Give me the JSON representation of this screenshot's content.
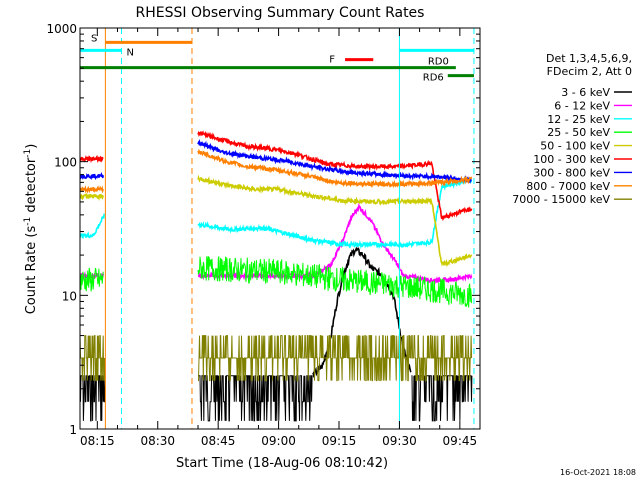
{
  "chart_data": {
    "type": "line",
    "title": "RHESSI Observing Summary Count Rates",
    "xlabel": "Start Time (18-Aug-06 08:10:42)",
    "ylabel": "Count Rate (s⁻¹ detector⁻¹)",
    "ylabel_parts": [
      "Count Rate (s",
      "-1",
      " detector",
      "-1",
      ")"
    ],
    "yscale": "log",
    "ylim": [
      1,
      1000
    ],
    "xlim_minutes": [
      490.7,
      590.0
    ],
    "x_ticks": [
      {
        "label": "08:15",
        "minutes": 495
      },
      {
        "label": "08:30",
        "minutes": 510
      },
      {
        "label": "08:45",
        "minutes": 525
      },
      {
        "label": "09:00",
        "minutes": 540
      },
      {
        "label": "09:15",
        "minutes": 555
      },
      {
        "label": "09:30",
        "minutes": 570
      },
      {
        "label": "09:45",
        "minutes": 585
      }
    ],
    "y_ticks": [
      {
        "label": "1",
        "value": 1
      },
      {
        "label": "10",
        "value": 10
      },
      {
        "label": "100",
        "value": 100
      },
      {
        "label": "1000",
        "value": 1000
      }
    ],
    "legend_header": [
      "Det 1,3,4,5,6,9,",
      "FDecim 2, Att 0"
    ],
    "legend_position": "right",
    "series": [
      {
        "name": "3 - 6 keV",
        "color": "#000000",
        "style": "noise",
        "segments": [
          {
            "x": [
              490.7,
              497
            ],
            "y": [
              2.5,
              2.5
            ]
          },
          {
            "x": [
              520,
              548.5
            ],
            "y": [
              2.5,
              2.5
            ]
          },
          {
            "x": [
              573,
              588
            ],
            "y": [
              2.5,
              2.5
            ]
          }
        ],
        "peak": {
          "x": [
            548.5,
            551,
            553,
            554.5,
            556,
            557.5,
            559,
            561,
            563,
            566,
            568.5,
            571,
            573
          ],
          "y": [
            2.5,
            3,
            5,
            9,
            14,
            19,
            22,
            20,
            16,
            14,
            10,
            4,
            2.5
          ]
        }
      },
      {
        "name": "6 - 12 keV",
        "color": "#ff00ff",
        "segments": [
          {
            "x": [
              490.7,
              496.5
            ],
            "y": [
              14,
              14
            ]
          },
          {
            "x": [
              520,
              540,
              549,
              553,
              556,
              558,
              560,
              563,
              566,
              569,
              571,
              578,
              582,
              588
            ],
            "y": [
              14,
              14,
              14,
              17,
              26,
              38,
              46,
              36,
              24,
              18,
              14,
              13,
              13,
              14
            ]
          }
        ]
      },
      {
        "name": "12 - 25 keV",
        "color": "#00ffff",
        "segments": [
          {
            "x": [
              490.7,
              494,
              496.8
            ],
            "y": [
              28,
              28,
              40
            ]
          },
          {
            "x": [
              520,
              528,
              536,
              542,
              548,
              556,
              564,
              572,
              578,
              580.5,
              588
            ],
            "y": [
              34,
              31,
              32,
              29,
              26,
              24,
              24,
              24,
              25,
              65,
              74
            ]
          }
        ]
      },
      {
        "name": "25 - 50 keV",
        "color": "#00ff00",
        "style": "noise",
        "segments": [
          {
            "x": [
              490.7,
              496.5
            ],
            "y": [
              13,
              13
            ]
          },
          {
            "x": [
              520,
              540,
              556,
              568,
              578,
              588
            ],
            "y": [
              16,
              15,
              13,
              12,
              11,
              10
            ]
          }
        ]
      },
      {
        "name": "50 - 100 keV",
        "color": "#cccc00",
        "segments": [
          {
            "x": [
              490.7,
              496.5
            ],
            "y": [
              55,
              55
            ]
          },
          {
            "x": [
              520,
              528,
              534,
              540,
              546,
              556,
              566,
              578,
              580.5,
              588
            ],
            "y": [
              75,
              66,
              62,
              62,
              57,
              51,
              50,
              51,
              17,
              20
            ]
          }
        ]
      },
      {
        "name": "100 - 300 keV",
        "color": "#ff0000",
        "segments": [
          {
            "x": [
              490.7,
              496.5
            ],
            "y": [
              105,
              105
            ]
          },
          {
            "x": [
              520,
              526,
              532,
              538,
              544,
              552,
              560,
              570,
              578,
              580.5,
              588
            ],
            "y": [
              165,
              145,
              130,
              125,
              115,
              96,
              92,
              92,
              97,
              38,
              45
            ]
          }
        ]
      },
      {
        "name": "300 - 800 keV",
        "color": "#0000ff",
        "segments": [
          {
            "x": [
              490.7,
              496.5
            ],
            "y": [
              78,
              78
            ]
          },
          {
            "x": [
              520,
              526,
              534,
              542,
              550,
              558,
              566,
              574,
              580.5,
              588
            ],
            "y": [
              140,
              118,
              108,
              101,
              90,
              83,
              80,
              78,
              77,
              72
            ]
          }
        ]
      },
      {
        "name": "800 - 7000 keV",
        "color": "#ff8000",
        "segments": [
          {
            "x": [
              490.7,
              496.5
            ],
            "y": [
              62,
              62
            ]
          },
          {
            "x": [
              520,
              526,
              532,
              538,
              546,
              554,
              562,
              572,
              580.5,
              588
            ],
            "y": [
              120,
              102,
              92,
              88,
              80,
              70,
              68,
              68,
              70,
              74
            ]
          }
        ]
      },
      {
        "name": "7000 - 15000 keV",
        "color": "#808000",
        "style": "noise",
        "segments": [
          {
            "x": [
              490.7,
              497
            ],
            "y": [
              3.4,
              3.4
            ]
          },
          {
            "x": [
              520,
              588
            ],
            "y": [
              3.4,
              3.4
            ]
          }
        ]
      }
    ],
    "annotations": [
      {
        "label": "S",
        "color": "#ff8000",
        "x_range": [
          497,
          518.5
        ],
        "y": 780
      },
      {
        "label": "N",
        "color": "#00ffff",
        "x_range": [
          490.7,
          501
        ],
        "y": 680
      },
      {
        "label": "F",
        "color": "#ff0000",
        "x_range": [
          556.5,
          563.5
        ],
        "y": 580
      },
      {
        "label": "RD0",
        "color": "#008000",
        "x_range": [
          490.7,
          584
        ],
        "y": 505
      },
      {
        "label": "RD6",
        "color": "#008000",
        "x_range": [
          582,
          588.5
        ],
        "y": 440
      },
      {
        "label": "",
        "color": "#00ffff",
        "x_range": [
          570,
          588.5
        ],
        "y": 680
      }
    ],
    "vlines": [
      {
        "x": 497,
        "color": "#ff8000",
        "style": "solid"
      },
      {
        "x": 501,
        "color": "#00ffff",
        "style": "dashed"
      },
      {
        "x": 518.5,
        "color": "#ff8000",
        "style": "dashed"
      },
      {
        "x": 570,
        "color": "#00ffff",
        "style": "solid"
      },
      {
        "x": 588.5,
        "color": "#00ffff",
        "style": "dashed"
      }
    ]
  },
  "footer_stamp": "16-Oct-2021 18:08"
}
